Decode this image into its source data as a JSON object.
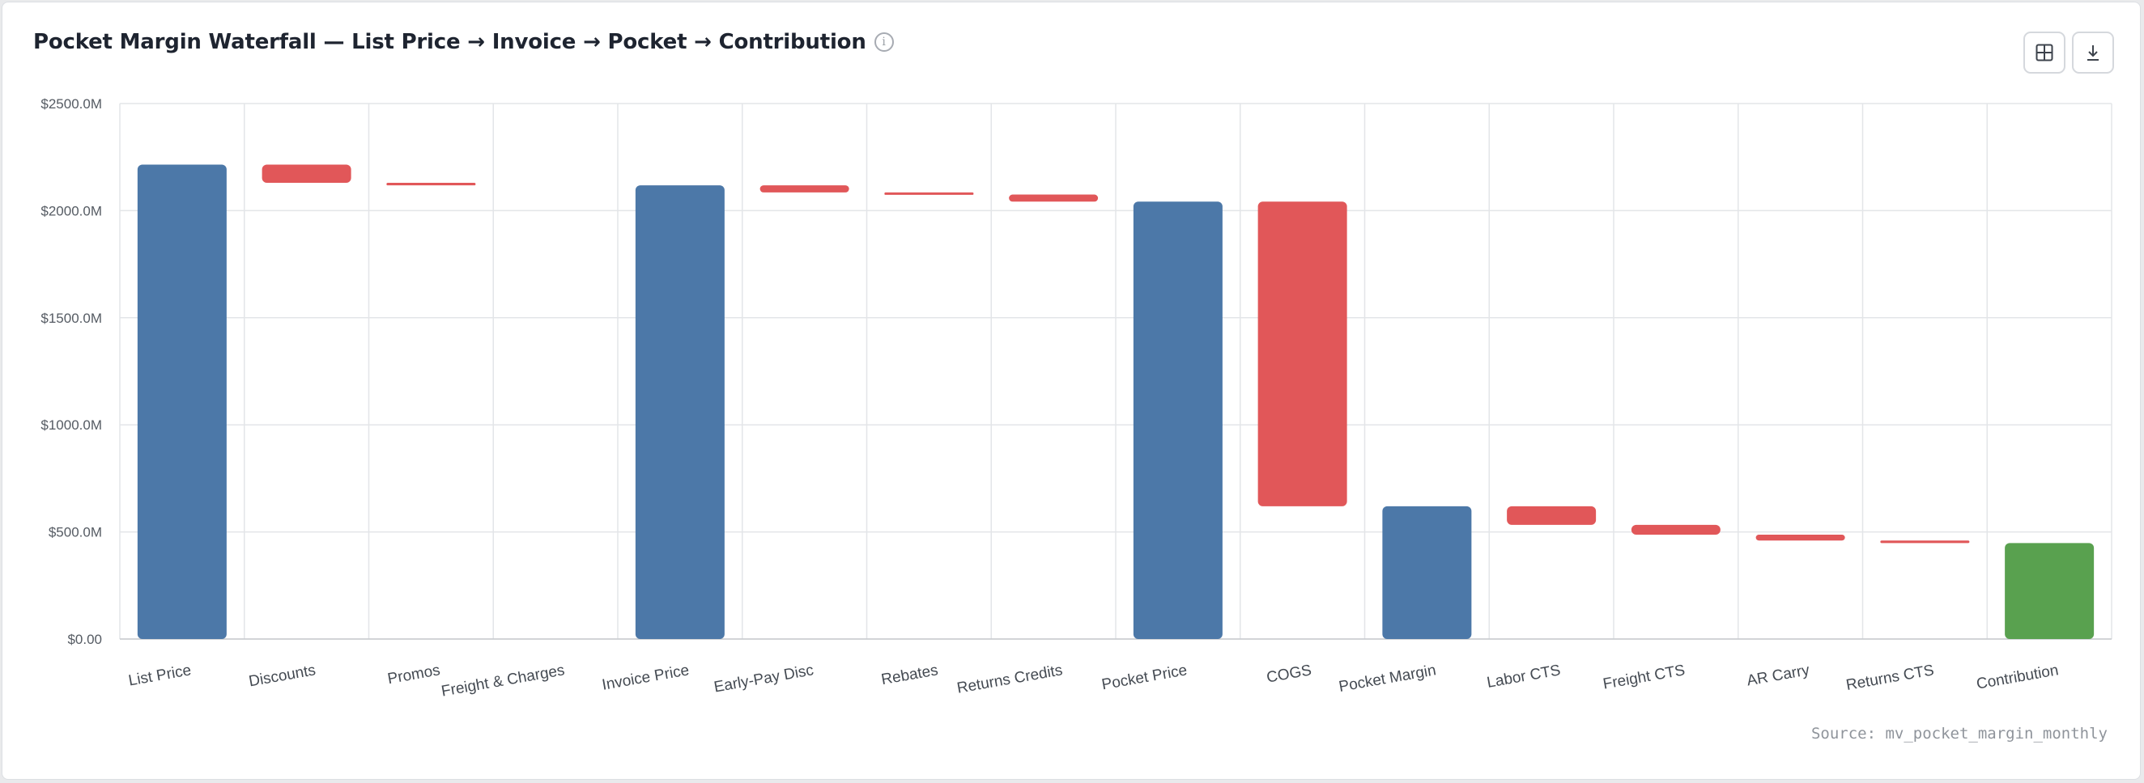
{
  "header": {
    "title": "Pocket Margin Waterfall — List Price → Invoice → Pocket → Contribution",
    "info_icon": "info-icon",
    "table_button_icon": "table-grid-icon",
    "download_button_icon": "download-icon"
  },
  "footer": {
    "source": "Source: mv_pocket_margin_monthly"
  },
  "colors": {
    "total": "#4c78a8",
    "decrease": "#e15759",
    "final": "#59a14f",
    "grid": "#e3e5e8"
  },
  "chart_data": {
    "type": "bar",
    "subtype": "waterfall",
    "title": "Pocket Margin Waterfall — List Price → Invoice → Pocket → Contribution",
    "xlabel": "",
    "ylabel": "",
    "ylim": [
      0,
      2500
    ],
    "y_ticks": [
      0,
      500,
      1000,
      1500,
      2000,
      2500
    ],
    "y_tick_labels": [
      "$0.00",
      "$500.0M",
      "$1000.0M",
      "$1500.0M",
      "$2000.0M",
      "$2500.0M"
    ],
    "grid": true,
    "categories": [
      "List Price",
      "Discounts",
      "Promos",
      "Freight & Charges",
      "Invoice Price",
      "Early-Pay Disc",
      "Rebates",
      "Returns Credits",
      "Pocket Price",
      "COGS",
      "Pocket Margin",
      "Labor CTS",
      "Freight CTS",
      "AR Carry",
      "Returns CTS",
      "Contribution"
    ],
    "bars": [
      {
        "label": "List Price",
        "kind": "total",
        "start": 0,
        "end": 2215
      },
      {
        "label": "Discounts",
        "kind": "decrease",
        "start": 2215,
        "end": 2130
      },
      {
        "label": "Promos",
        "kind": "decrease",
        "start": 2130,
        "end": 2118
      },
      {
        "label": "Freight & Charges",
        "kind": "decrease",
        "start": 2118,
        "end": 2118
      },
      {
        "label": "Invoice Price",
        "kind": "total",
        "start": 0,
        "end": 2118
      },
      {
        "label": "Early-Pay Disc",
        "kind": "decrease",
        "start": 2118,
        "end": 2085
      },
      {
        "label": "Rebates",
        "kind": "decrease",
        "start": 2085,
        "end": 2075
      },
      {
        "label": "Returns Credits",
        "kind": "decrease",
        "start": 2075,
        "end": 2042
      },
      {
        "label": "Pocket Price",
        "kind": "total",
        "start": 0,
        "end": 2042
      },
      {
        "label": "COGS",
        "kind": "decrease",
        "start": 2042,
        "end": 620
      },
      {
        "label": "Pocket Margin",
        "kind": "total",
        "start": 0,
        "end": 620
      },
      {
        "label": "Labor CTS",
        "kind": "decrease",
        "start": 620,
        "end": 533
      },
      {
        "label": "Freight CTS",
        "kind": "decrease",
        "start": 533,
        "end": 487
      },
      {
        "label": "AR Carry",
        "kind": "decrease",
        "start": 487,
        "end": 460
      },
      {
        "label": "Returns CTS",
        "kind": "decrease",
        "start": 460,
        "end": 448
      },
      {
        "label": "Contribution",
        "kind": "final",
        "start": 0,
        "end": 448
      }
    ]
  }
}
